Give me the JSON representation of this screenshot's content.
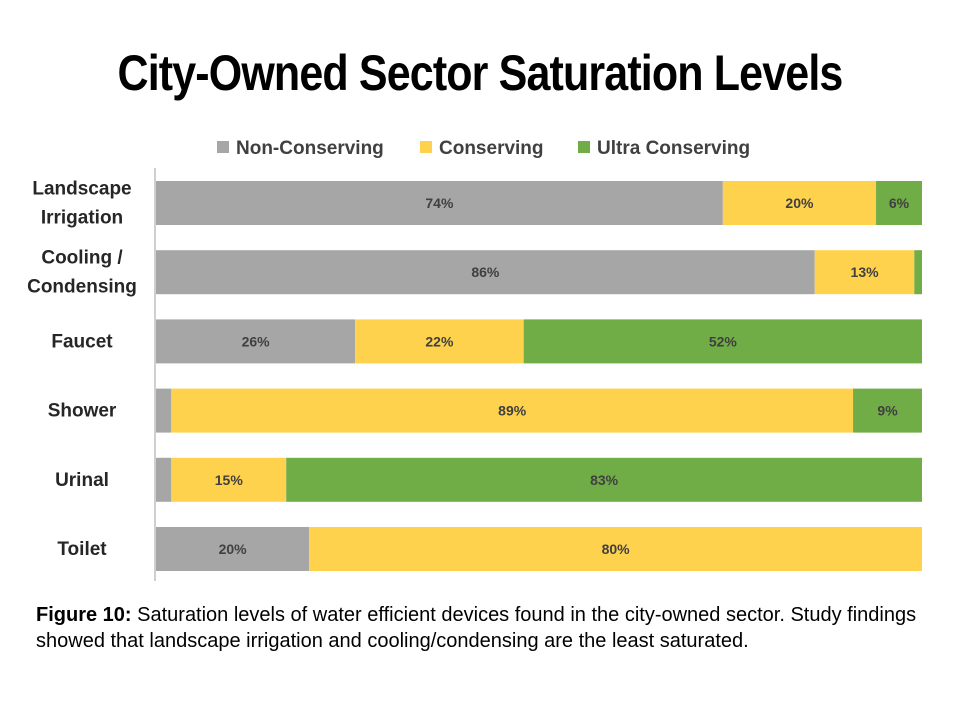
{
  "title": "City-Owned Sector Saturation Levels",
  "caption": {
    "label": "Figure 10:",
    "text": " Saturation levels of water efficient devices found in the city-owned sector. Study findings showed that landscape irrigation and cooling/condensing are the least saturated."
  },
  "colors": {
    "non_conserving": "#a6a6a6",
    "conserving": "#ffd24d",
    "ultra_conserving": "#70ad47"
  },
  "chart_data": {
    "type": "bar",
    "orientation": "horizontal",
    "stacked": true,
    "percent_stacked": true,
    "legend_position": "top",
    "grid": false,
    "categories": [
      [
        "Landscape",
        "Irrigation"
      ],
      [
        "Cooling /",
        "Condensing"
      ],
      [
        "Faucet"
      ],
      [
        "Shower"
      ],
      [
        "Urinal"
      ],
      [
        "Toilet"
      ]
    ],
    "series": [
      {
        "name": "Non-Conserving",
        "color": "#a6a6a6",
        "values": [
          74,
          86,
          26,
          2,
          2,
          20
        ],
        "labels": [
          "74%",
          "86%",
          "26%",
          "",
          "",
          "20%"
        ]
      },
      {
        "name": "Conserving",
        "color": "#ffd24d",
        "values": [
          20,
          13,
          22,
          89,
          15,
          80
        ],
        "labels": [
          "20%",
          "13%",
          "22%",
          "89%",
          "15%",
          "80%"
        ]
      },
      {
        "name": "Ultra Conserving",
        "color": "#70ad47",
        "values": [
          6,
          1,
          52,
          9,
          83,
          0
        ],
        "labels": [
          "6%",
          "",
          "52%",
          "9%",
          "83%",
          ""
        ]
      }
    ]
  }
}
